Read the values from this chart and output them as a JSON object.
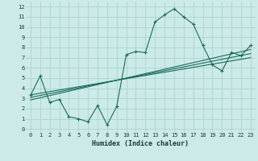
{
  "xlabel": "Humidex (Indice chaleur)",
  "bg_color": "#cceae7",
  "grid_color": "#aad4d0",
  "line_color": "#1a6b5e",
  "x_data": [
    0,
    1,
    2,
    3,
    4,
    5,
    6,
    7,
    8,
    9,
    10,
    11,
    12,
    13,
    14,
    15,
    16,
    17,
    18,
    19,
    20,
    21,
    22,
    23
  ],
  "y_data": [
    3.3,
    5.2,
    2.6,
    2.9,
    1.2,
    1.0,
    0.7,
    2.3,
    0.4,
    2.2,
    7.3,
    7.6,
    7.5,
    10.5,
    11.2,
    11.8,
    11.0,
    10.3,
    8.2,
    6.3,
    5.7,
    7.5,
    7.2,
    8.2
  ],
  "xlim": [
    -0.5,
    23.5
  ],
  "ylim": [
    -0.3,
    12.5
  ],
  "xticks": [
    0,
    1,
    2,
    3,
    4,
    5,
    6,
    7,
    8,
    9,
    10,
    11,
    12,
    13,
    14,
    15,
    16,
    17,
    18,
    19,
    20,
    21,
    22,
    23
  ],
  "yticks": [
    0,
    1,
    2,
    3,
    4,
    5,
    6,
    7,
    8,
    9,
    10,
    11,
    12
  ],
  "reg_lines": [
    {
      "x0": 0,
      "y0": 3.35,
      "x1": 23,
      "y1": 7.0
    },
    {
      "x0": 0,
      "y0": 3.1,
      "x1": 23,
      "y1": 7.4
    },
    {
      "x0": 0,
      "y0": 2.85,
      "x1": 23,
      "y1": 7.8
    }
  ]
}
